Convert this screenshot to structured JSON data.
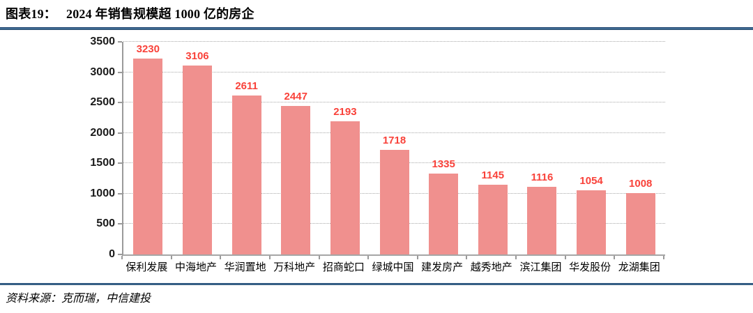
{
  "header": {
    "title_prefix": "图表19：",
    "title": "2024 年销售规模超 1000 亿的房企"
  },
  "footer": {
    "source": "资料来源：克而瑞，中信建投"
  },
  "colors": {
    "accent_line": "#2a5784",
    "bar": "#f0908e",
    "value_label": "#f9423a",
    "axis": "#9a9a9a",
    "grid": "#a8a8a8"
  },
  "chart_data": {
    "type": "bar",
    "title": "2024 年销售规模超 1000 亿的房企",
    "categories": [
      "保利发展",
      "中海地产",
      "华润置地",
      "万科地产",
      "招商蛇口",
      "绿城中国",
      "建发房产",
      "越秀地产",
      "滨江集团",
      "华发股份",
      "龙湖集团"
    ],
    "values": [
      3230,
      3106,
      2611,
      2447,
      2193,
      1718,
      1335,
      1145,
      1116,
      1054,
      1008
    ],
    "xlabel": "",
    "ylabel": "",
    "ylim": [
      0,
      3500
    ],
    "yticks": [
      0,
      500,
      1000,
      1500,
      2000,
      2500,
      3000,
      3500
    ],
    "grid": "horizontal-dotted",
    "legend": "none",
    "bar_color": "#f0908e",
    "value_label_color": "#f9423a"
  }
}
